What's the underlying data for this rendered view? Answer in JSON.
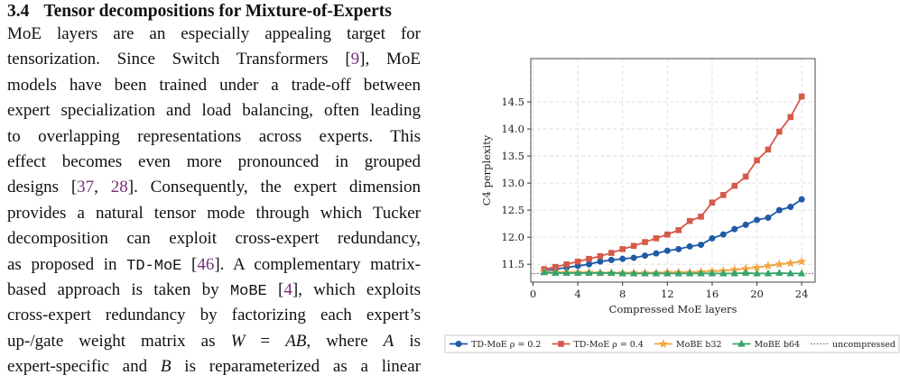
{
  "section": {
    "number": "3.4",
    "title": "Tensor decompositions for Mixture-of-Experts"
  },
  "text": {
    "lines": [
      [
        "MoE layers are an especially appealing target for"
      ],
      [
        "tensorization. Since Switch Transformers [",
        {
          "cite": "9"
        },
        "], MoE"
      ],
      [
        "models have been trained under a trade-off between"
      ],
      [
        "expert specialization and load balancing, often leading"
      ],
      [
        "to overlapping representations across experts. This"
      ],
      [
        "effect becomes even more pronounced in grouped"
      ],
      [
        "designs [",
        {
          "cite": "37"
        },
        ", ",
        {
          "cite": "28"
        },
        "]. Consequently, the expert dimension"
      ],
      [
        "provides a natural tensor mode through which Tucker"
      ],
      [
        "decomposition can exploit cross-expert redundancy,"
      ],
      [
        "as proposed in ",
        {
          "code": "TD-MoE"
        },
        " [",
        {
          "cite": "46"
        },
        "]. A complementary matrix-"
      ],
      [
        "based approach is taken by ",
        {
          "code": "MoBE"
        },
        " [",
        {
          "cite": "4"
        },
        "], which exploits"
      ],
      [
        "cross-expert redundancy by factorizing each expert’s"
      ],
      [
        "up-/gate weight matrix as ",
        {
          "math": "W"
        },
        " = ",
        {
          "math": "AB"
        },
        ", where ",
        {
          "math": "A"
        },
        " is"
      ],
      [
        "expert-specific and ",
        {
          "math": "B"
        },
        " is reparameterized as a linear"
      ]
    ]
  },
  "chart_data": {
    "type": "line",
    "x_label": "Compressed MoE layers",
    "y_label": "C4 perplexity",
    "x": [
      1,
      2,
      3,
      4,
      5,
      6,
      7,
      8,
      9,
      10,
      11,
      12,
      13,
      14,
      15,
      16,
      17,
      18,
      19,
      20,
      21,
      22,
      23,
      24
    ],
    "xlim": [
      -0.2,
      25.2
    ],
    "xticks": [
      0,
      4,
      8,
      12,
      16,
      20,
      24
    ],
    "ylim": [
      11.17,
      15.3
    ],
    "yticks": [
      {
        "value": 11.5,
        "label": "11.5"
      },
      {
        "value": 12,
        "label": "12.0"
      },
      {
        "value": 12.5,
        "label": "12.5"
      },
      {
        "value": 13,
        "label": "13.0"
      },
      {
        "value": 13.5,
        "label": "13.5"
      },
      {
        "value": 14,
        "label": "14.0"
      },
      {
        "value": 14.5,
        "label": "14.5"
      }
    ],
    "grid": true,
    "legend": "bottom",
    "series": [
      {
        "name": "TD-MoE ρ = 0.2",
        "color": "#1f5ba6",
        "marker": "circle",
        "values": [
          11.38,
          11.41,
          11.44,
          11.47,
          11.5,
          11.55,
          11.58,
          11.6,
          11.62,
          11.66,
          11.7,
          11.75,
          11.78,
          11.83,
          11.86,
          11.98,
          12.05,
          12.15,
          12.23,
          12.32,
          12.36,
          12.5,
          12.56,
          12.7
        ]
      },
      {
        "name": "TD-MoE ρ = 0.4",
        "color": "#d45a4a",
        "marker": "square",
        "values": [
          11.41,
          11.45,
          11.5,
          11.55,
          11.6,
          11.65,
          11.71,
          11.78,
          11.84,
          11.91,
          11.98,
          12.05,
          12.13,
          12.3,
          12.38,
          12.64,
          12.78,
          12.95,
          13.12,
          13.42,
          13.62,
          13.95,
          14.22,
          14.6
        ]
      },
      {
        "name": "MoBE b32",
        "color": "#f2a540",
        "marker": "star",
        "values": [
          11.36,
          11.35,
          11.35,
          11.35,
          11.35,
          11.34,
          11.34,
          11.34,
          11.34,
          11.34,
          11.34,
          11.35,
          11.35,
          11.35,
          11.36,
          11.37,
          11.38,
          11.4,
          11.42,
          11.44,
          11.47,
          11.5,
          11.52,
          11.55
        ]
      },
      {
        "name": "MoBE b64",
        "color": "#35a56a",
        "marker": "triangle",
        "values": [
          11.35,
          11.34,
          11.34,
          11.34,
          11.34,
          11.34,
          11.34,
          11.33,
          11.33,
          11.33,
          11.33,
          11.33,
          11.33,
          11.33,
          11.33,
          11.33,
          11.33,
          11.33,
          11.34,
          11.33,
          11.33,
          11.34,
          11.33,
          11.33
        ]
      }
    ],
    "reference": {
      "name": "uncompressed",
      "value": 11.33,
      "color": "#555555"
    }
  }
}
